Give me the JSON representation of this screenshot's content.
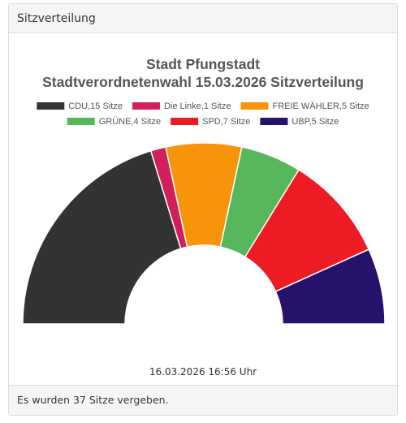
{
  "panel": {
    "header": "Sitzverteilung",
    "footer": "Es wurden 37 Sitze vergeben.",
    "timestamp": "16.03.2026 16:56 Uhr"
  },
  "chart_data": {
    "type": "pie",
    "variant": "semicircle-donut",
    "title": "Stadt Pfungstadt",
    "subtitle": "Stadtverordnetenwahl 15.03.2026 Sitzverteilung",
    "total": 37,
    "legend_position": "top",
    "series": [
      {
        "name": "CDU,15 Sitze",
        "party": "CDU",
        "seats": 15,
        "color": "#333333"
      },
      {
        "name": "Die Linke,1 Sitze",
        "party": "Die Linke",
        "seats": 1,
        "color": "#d11f5a"
      },
      {
        "name": "FREIE WÄHLER,5 Sitze",
        "party": "FREIE WÄHLER",
        "seats": 5,
        "color": "#f7940a"
      },
      {
        "name": "GRÜNE,4 Sitze",
        "party": "GRÜNE",
        "seats": 4,
        "color": "#56b65c"
      },
      {
        "name": "SPD,7 Sitze",
        "party": "SPD",
        "seats": 7,
        "color": "#ed1c24"
      },
      {
        "name": "UBP,5 Sitze",
        "party": "UBP",
        "seats": 5,
        "color": "#27126b"
      }
    ]
  }
}
